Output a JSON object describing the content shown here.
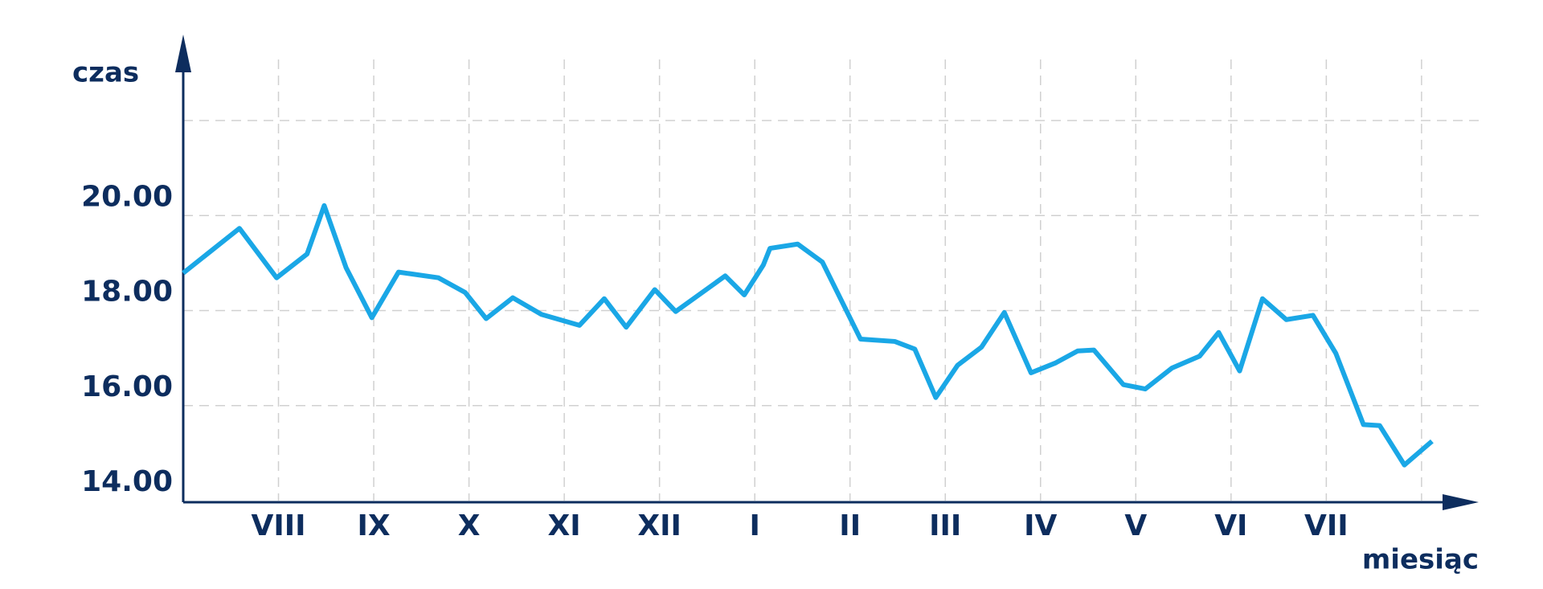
{
  "chart_data": {
    "type": "line",
    "y_label": "czas",
    "x_label": "miesiąc",
    "x": [
      -1.0,
      -0.41,
      -0.02,
      0.3,
      0.48,
      0.71,
      0.98,
      1.26,
      1.68,
      1.96,
      2.18,
      2.46,
      2.76,
      3.16,
      3.42,
      3.65,
      3.95,
      4.17,
      4.69,
      4.89,
      5.09,
      5.16,
      5.45,
      5.71,
      6.11,
      6.47,
      6.68,
      6.9,
      7.13,
      7.38,
      7.62,
      7.9,
      8.16,
      8.39,
      8.56,
      8.87,
      9.1,
      9.38,
      9.67,
      9.87,
      10.09,
      10.33,
      10.58,
      10.86,
      11.1,
      11.39,
      11.56,
      11.82,
      12.11
    ],
    "series": [
      {
        "color": "#1aa7e6",
        "values": [
          18.79,
          19.73,
          18.69,
          19.19,
          20.21,
          18.9,
          17.85,
          18.81,
          18.69,
          18.38,
          17.83,
          18.27,
          17.92,
          17.69,
          18.25,
          17.65,
          18.44,
          17.98,
          18.73,
          18.33,
          18.96,
          19.31,
          19.4,
          19.02,
          17.4,
          17.35,
          17.19,
          16.17,
          16.85,
          17.23,
          17.96,
          16.69,
          16.9,
          17.15,
          17.17,
          16.44,
          16.35,
          16.79,
          17.04,
          17.54,
          16.73,
          18.25,
          17.81,
          17.9,
          17.1,
          15.6,
          15.58,
          14.75,
          15.25
        ]
      }
    ],
    "xlim": [
      -1,
      12.6
    ],
    "xticks": [
      {
        "value": 0,
        "label": "VIII"
      },
      {
        "value": 1,
        "label": "IX"
      },
      {
        "value": 2,
        "label": "X"
      },
      {
        "value": 3,
        "label": "XI"
      },
      {
        "value": 4,
        "label": "XII"
      },
      {
        "value": 5,
        "label": "I"
      },
      {
        "value": 6,
        "label": "II"
      },
      {
        "value": 7,
        "label": "III"
      },
      {
        "value": 8,
        "label": "IV"
      },
      {
        "value": 9,
        "label": "V"
      },
      {
        "value": 10,
        "label": "VI"
      },
      {
        "value": 11,
        "label": "VII"
      },
      {
        "value": 12,
        "label": null
      }
    ],
    "ylim": [
      14,
      22
    ],
    "yticks": [
      {
        "value": 14,
        "label": "14.00"
      },
      {
        "value": 16,
        "label": "16.00"
      },
      {
        "value": 18,
        "label": "18.00"
      },
      {
        "value": 20,
        "label": "20.00"
      },
      {
        "value": 22,
        "label": null
      }
    ],
    "grid": true
  }
}
